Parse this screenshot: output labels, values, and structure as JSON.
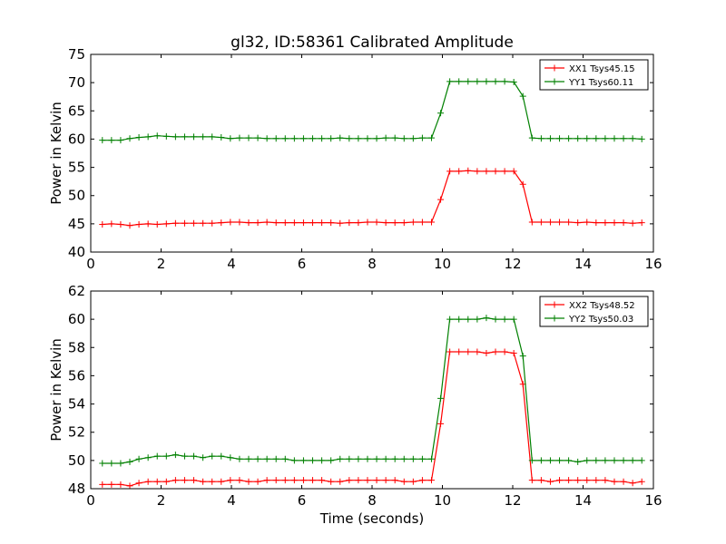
{
  "title": "gl32, ID:58361 Calibrated Amplitude",
  "chart_data": [
    {
      "type": "line",
      "ylabel": "Power in Kelvin",
      "xlabel": "",
      "xlim": [
        0,
        16
      ],
      "ylim": [
        40,
        75
      ],
      "xticks": [
        0,
        2,
        4,
        6,
        8,
        10,
        12,
        14,
        16
      ],
      "yticks": [
        40,
        45,
        50,
        55,
        60,
        65,
        70,
        75
      ],
      "grid": false,
      "legend_position": "top-right",
      "x": [
        0.33,
        0.59,
        0.85,
        1.11,
        1.37,
        1.63,
        1.89,
        2.15,
        2.41,
        2.67,
        2.93,
        3.19,
        3.45,
        3.71,
        3.97,
        4.23,
        4.49,
        4.75,
        5.01,
        5.27,
        5.53,
        5.79,
        6.05,
        6.31,
        6.57,
        6.83,
        7.09,
        7.35,
        7.61,
        7.87,
        8.13,
        8.39,
        8.65,
        8.91,
        9.17,
        9.43,
        9.69,
        9.95,
        10.21,
        10.47,
        10.73,
        10.99,
        11.25,
        11.51,
        11.77,
        12.03,
        12.29,
        12.55,
        12.81,
        13.07,
        13.33,
        13.59,
        13.85,
        14.11,
        14.37,
        14.63,
        14.89,
        15.15,
        15.41,
        15.67
      ],
      "series": [
        {
          "name": "XX1 Tsys45.15",
          "color": "#ff0000",
          "values": [
            44.9,
            45.0,
            44.9,
            44.7,
            44.9,
            45.0,
            44.9,
            45.0,
            45.1,
            45.1,
            45.1,
            45.1,
            45.1,
            45.2,
            45.3,
            45.3,
            45.2,
            45.2,
            45.3,
            45.2,
            45.2,
            45.2,
            45.2,
            45.2,
            45.2,
            45.2,
            45.1,
            45.2,
            45.2,
            45.3,
            45.3,
            45.2,
            45.2,
            45.2,
            45.3,
            45.3,
            45.3,
            49.3,
            54.3,
            54.3,
            54.4,
            54.3,
            54.3,
            54.3,
            54.3,
            54.3,
            52.0,
            45.3,
            45.3,
            45.3,
            45.3,
            45.3,
            45.2,
            45.3,
            45.2,
            45.2,
            45.2,
            45.2,
            45.1,
            45.2
          ]
        },
        {
          "name": "YY1 Tsys60.11",
          "color": "#008000",
          "values": [
            59.8,
            59.8,
            59.8,
            60.1,
            60.3,
            60.4,
            60.6,
            60.5,
            60.4,
            60.4,
            60.4,
            60.4,
            60.4,
            60.3,
            60.1,
            60.2,
            60.2,
            60.2,
            60.1,
            60.1,
            60.1,
            60.1,
            60.1,
            60.1,
            60.1,
            60.1,
            60.2,
            60.1,
            60.1,
            60.1,
            60.1,
            60.2,
            60.2,
            60.1,
            60.1,
            60.2,
            60.2,
            64.6,
            70.2,
            70.2,
            70.2,
            70.2,
            70.2,
            70.2,
            70.2,
            70.1,
            67.6,
            60.2,
            60.1,
            60.1,
            60.1,
            60.1,
            60.1,
            60.1,
            60.1,
            60.1,
            60.1,
            60.1,
            60.1,
            60.0
          ]
        }
      ]
    },
    {
      "type": "line",
      "ylabel": "Power in Kelvin",
      "xlabel": "Time (seconds)",
      "xlim": [
        0,
        16
      ],
      "ylim": [
        48,
        62
      ],
      "xticks": [
        0,
        2,
        4,
        6,
        8,
        10,
        12,
        14,
        16
      ],
      "yticks": [
        48,
        50,
        52,
        54,
        56,
        58,
        60,
        62
      ],
      "grid": false,
      "legend_position": "top-right",
      "x": [
        0.33,
        0.59,
        0.85,
        1.11,
        1.37,
        1.63,
        1.89,
        2.15,
        2.41,
        2.67,
        2.93,
        3.19,
        3.45,
        3.71,
        3.97,
        4.23,
        4.49,
        4.75,
        5.01,
        5.27,
        5.53,
        5.79,
        6.05,
        6.31,
        6.57,
        6.83,
        7.09,
        7.35,
        7.61,
        7.87,
        8.13,
        8.39,
        8.65,
        8.91,
        9.17,
        9.43,
        9.69,
        9.95,
        10.21,
        10.47,
        10.73,
        10.99,
        11.25,
        11.51,
        11.77,
        12.03,
        12.29,
        12.55,
        12.81,
        13.07,
        13.33,
        13.59,
        13.85,
        14.11,
        14.37,
        14.63,
        14.89,
        15.15,
        15.41,
        15.67
      ],
      "series": [
        {
          "name": "XX2 Tsys48.52",
          "color": "#ff0000",
          "values": [
            48.3,
            48.3,
            48.3,
            48.2,
            48.4,
            48.5,
            48.5,
            48.5,
            48.6,
            48.6,
            48.6,
            48.5,
            48.5,
            48.5,
            48.6,
            48.6,
            48.5,
            48.5,
            48.6,
            48.6,
            48.6,
            48.6,
            48.6,
            48.6,
            48.6,
            48.5,
            48.5,
            48.6,
            48.6,
            48.6,
            48.6,
            48.6,
            48.6,
            48.5,
            48.5,
            48.6,
            48.6,
            52.6,
            57.7,
            57.7,
            57.7,
            57.7,
            57.6,
            57.7,
            57.7,
            57.6,
            55.4,
            48.6,
            48.6,
            48.5,
            48.6,
            48.6,
            48.6,
            48.6,
            48.6,
            48.6,
            48.5,
            48.5,
            48.4,
            48.5
          ]
        },
        {
          "name": "YY2 Tsys50.03",
          "color": "#008000",
          "values": [
            49.8,
            49.8,
            49.8,
            49.9,
            50.1,
            50.2,
            50.3,
            50.3,
            50.4,
            50.3,
            50.3,
            50.2,
            50.3,
            50.3,
            50.2,
            50.1,
            50.1,
            50.1,
            50.1,
            50.1,
            50.1,
            50.0,
            50.0,
            50.0,
            50.0,
            50.0,
            50.1,
            50.1,
            50.1,
            50.1,
            50.1,
            50.1,
            50.1,
            50.1,
            50.1,
            50.1,
            50.1,
            54.4,
            60.0,
            60.0,
            60.0,
            60.0,
            60.1,
            60.0,
            60.0,
            60.0,
            57.4,
            50.0,
            50.0,
            50.0,
            50.0,
            50.0,
            49.9,
            50.0,
            50.0,
            50.0,
            50.0,
            50.0,
            50.0,
            50.0
          ]
        }
      ]
    }
  ]
}
